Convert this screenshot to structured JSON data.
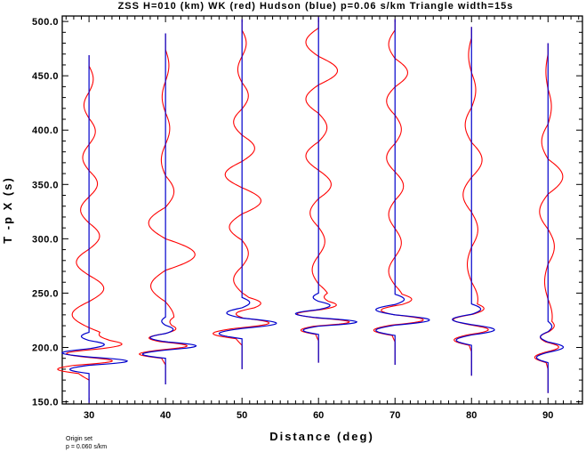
{
  "chart_data": {
    "type": "line",
    "title": "ZSS H=010 (km) WK (red) Hudson (blue) p=0.06 s/km Triangle width=15s",
    "xlabel": "Distance (deg)",
    "ylabel": "T -p X (s)",
    "xlim": [
      26.5,
      94.5
    ],
    "ylim": [
      148,
      505
    ],
    "xticks": [
      "30",
      "40",
      "50",
      "60",
      "70",
      "80",
      "90"
    ],
    "yticks": [
      "150.0",
      "200.0",
      "250.0",
      "300.0",
      "350.0",
      "400.0",
      "450.0",
      "500.0"
    ],
    "grid": false,
    "legend": "none",
    "annotations": [
      "Origin set",
      "p = 0.060 s/km"
    ],
    "colors": {
      "WK": "#ff0000",
      "Hudson": "#0000cc",
      "axis": "#000000"
    },
    "traces": [
      {
        "distance": 30,
        "t_start": 149,
        "t_end": 469,
        "onset": 176,
        "hudson_amp": [
          -2.5,
          5.0,
          -3.5,
          2.0,
          -1.0
        ],
        "wk_amp": [
          -3.5,
          5.0,
          -4.0,
          3.5,
          -3.0,
          2.5,
          -2.0,
          2.0,
          -1.5,
          1.5,
          -1.2,
          1.0
        ]
      },
      {
        "distance": 40,
        "t_start": 166,
        "t_end": 489,
        "onset": 190,
        "hudson_amp": [
          -3.0,
          4.0,
          -2.0,
          1.0,
          -0.5
        ],
        "wk_amp": [
          -1.5,
          2.0,
          -3.5,
          7.0,
          -4.0,
          2.0,
          -1.0,
          1.0,
          -0.8,
          0.8
        ]
      },
      {
        "distance": 50,
        "t_start": 180,
        "t_end": 502,
        "onset": 208,
        "hudson_amp": [
          -3.0,
          4.5,
          -2.0,
          1.0
        ],
        "wk_amp": [
          -2.0,
          3.0,
          -2.0,
          1.5,
          -3.0,
          4.5,
          -4.0,
          3.0,
          -2.0,
          1.5,
          -1.0,
          1.0
        ]
      },
      {
        "distance": 60,
        "t_start": 186,
        "t_end": 504,
        "onset": 212,
        "hudson_amp": [
          -2.0,
          5.0,
          -3.0,
          1.5,
          -0.7
        ],
        "wk_amp": [
          -1.0,
          2.5,
          -1.5,
          1.5,
          -2.0,
          3.0,
          -3.0,
          2.0,
          -3.0,
          4.5,
          -3.0
        ]
      },
      {
        "distance": 70,
        "t_start": 184,
        "t_end": 502,
        "onset": 211,
        "hudson_amp": [
          -2.5,
          4.5,
          -2.5,
          1.2
        ],
        "wk_amp": [
          -1.0,
          2.0,
          -1.5,
          1.5,
          -1.5,
          2.0,
          -2.0,
          1.5,
          -2.0,
          3.0,
          -1.5
        ]
      },
      {
        "distance": 80,
        "t_start": 174,
        "t_end": 495,
        "onset": 202,
        "hudson_amp": [
          -2.0,
          3.0,
          -2.5,
          1.2
        ],
        "wk_amp": [
          -1.0,
          1.5,
          -1.0,
          1.5,
          -2.0,
          2.5,
          -1.5,
          1.0,
          -0.7
        ]
      },
      {
        "distance": 90,
        "t_start": 158,
        "t_end": 480,
        "onset": 186,
        "hudson_amp": [
          -1.5,
          2.0,
          -1.0,
          0.5
        ],
        "wk_amp": [
          -0.8,
          1.0,
          -0.8,
          1.5,
          -2.0,
          3.5,
          -1.5,
          0.8,
          -0.5
        ]
      }
    ]
  }
}
